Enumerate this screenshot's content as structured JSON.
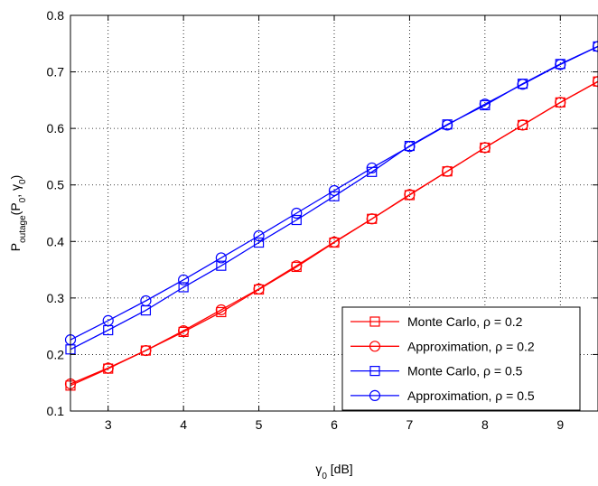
{
  "chart_data": {
    "type": "line",
    "xlabel_main": "γ",
    "xlabel_sub": "0",
    "xlabel_rest": " [dB]",
    "ylabel_main": "P",
    "ylabel_sub1": "outage",
    "ylabel_mid1": "(P",
    "ylabel_sub2": "0",
    "ylabel_mid2": ", γ",
    "ylabel_sub3": "0",
    "ylabel_end": ")",
    "xlim": [
      2.5,
      9.5
    ],
    "ylim": [
      0.1,
      0.8
    ],
    "x_ticks": [
      3,
      4,
      5,
      6,
      7,
      8,
      9
    ],
    "y_ticks": [
      0.1,
      0.2,
      0.3,
      0.4,
      0.5,
      0.6,
      0.7,
      0.8
    ],
    "x_tick_labels": [
      "3",
      "4",
      "5",
      "6",
      "7",
      "8",
      "9"
    ],
    "y_tick_labels": [
      "0.1",
      "0.2",
      "0.3",
      "0.4",
      "0.5",
      "0.6",
      "0.7",
      "0.8"
    ],
    "grid": true,
    "legend_position": "bottom-right",
    "x": [
      2.5,
      3.0,
      3.5,
      4.0,
      4.5,
      5.0,
      5.5,
      6.0,
      6.5,
      7.0,
      7.5,
      8.0,
      8.5,
      9.0,
      9.5
    ],
    "series": [
      {
        "name": "Monte Carlo, ρ = 0.2",
        "color": "#ff0000",
        "marker": "square",
        "values": [
          0.145,
          0.175,
          0.207,
          0.24,
          0.275,
          0.315,
          0.355,
          0.398,
          0.44,
          0.482,
          0.524,
          0.566,
          0.606,
          0.646,
          0.683
        ]
      },
      {
        "name": "Approximation, ρ = 0.2",
        "color": "#ff0000",
        "marker": "circle",
        "values": [
          0.148,
          0.176,
          0.207,
          0.242,
          0.279,
          0.316,
          0.357,
          0.399,
          0.44,
          0.483,
          0.524,
          0.566,
          0.606,
          0.646,
          0.683
        ]
      },
      {
        "name": "Monte Carlo, ρ = 0.5",
        "color": "#0000ff",
        "marker": "square",
        "values": [
          0.209,
          0.243,
          0.278,
          0.319,
          0.357,
          0.398,
          0.438,
          0.48,
          0.523,
          0.569,
          0.607,
          0.641,
          0.679,
          0.714,
          0.745
        ]
      },
      {
        "name": "Approximation, ρ = 0.5",
        "color": "#0000ff",
        "marker": "circle",
        "values": [
          0.226,
          0.26,
          0.295,
          0.332,
          0.371,
          0.41,
          0.45,
          0.49,
          0.53,
          0.568,
          0.606,
          0.643,
          0.678,
          0.713,
          0.745
        ]
      }
    ]
  }
}
